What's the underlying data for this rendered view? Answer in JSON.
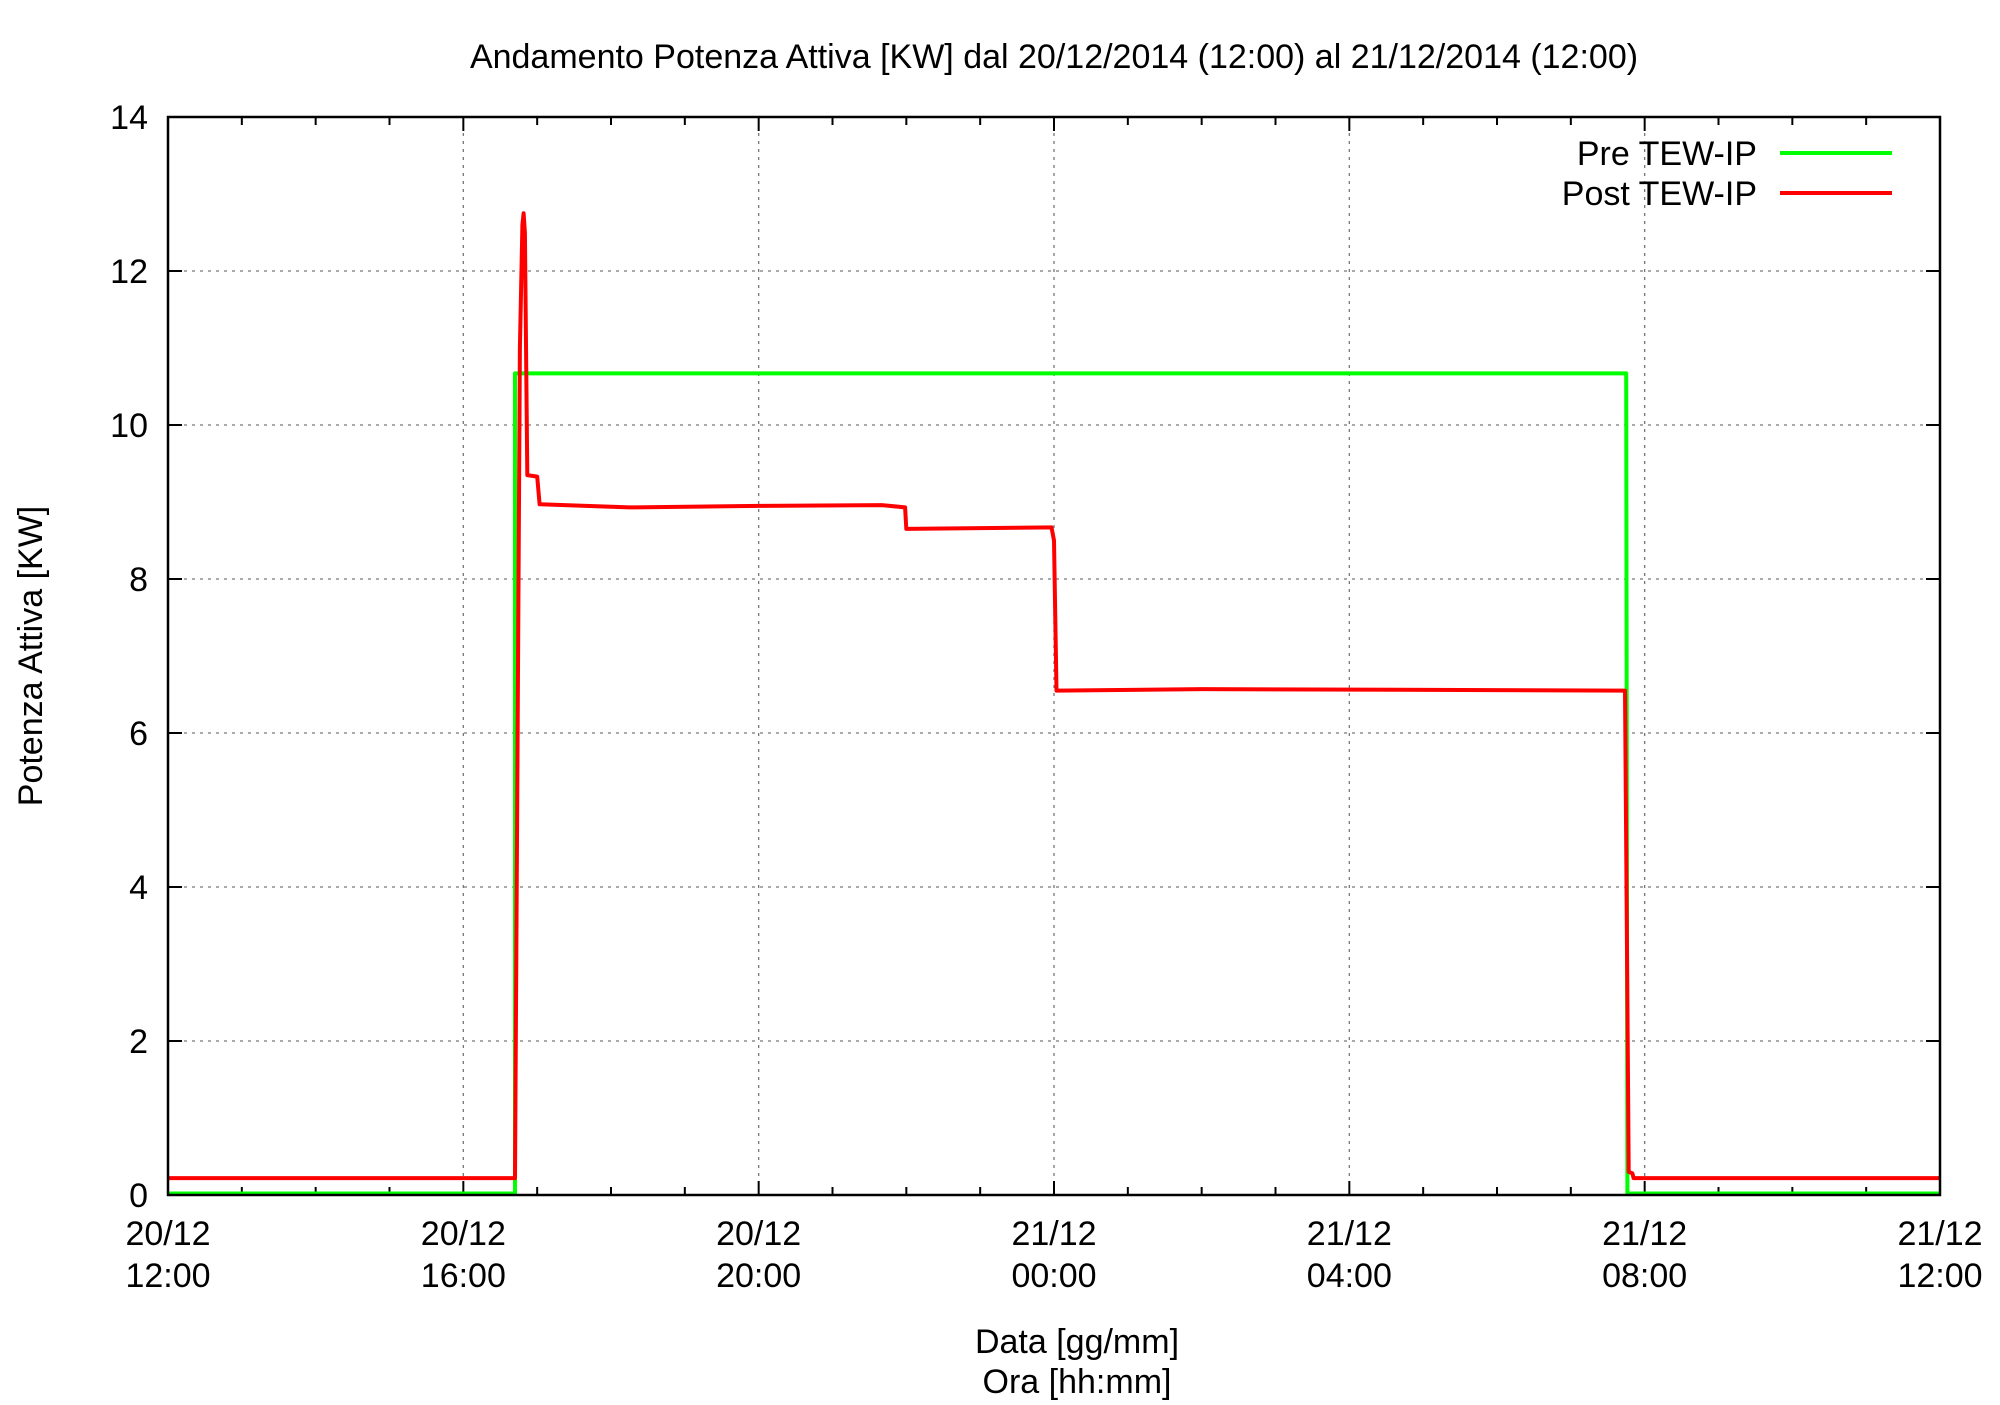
{
  "chart_data": {
    "type": "line",
    "title": "Andamento Potenza Attiva [KW] dal 20/12/2014 (12:00) al 21/12/2014 (12:00)",
    "xlabel": [
      "Data [gg/mm]",
      "Ora [hh:mm]"
    ],
    "ylabel": "Potenza Attiva [KW]",
    "xlim": [
      "2014-12-20 12:00",
      "2014-12-21 12:00"
    ],
    "ylim": [
      0,
      14
    ],
    "yticks": [
      "0",
      "2",
      "4",
      "6",
      "8",
      "10",
      "12",
      "14"
    ],
    "xticks": [
      {
        "t": "2014-12-20 12:00",
        "l1": "20/12",
        "l2": "12:00"
      },
      {
        "t": "2014-12-20 16:00",
        "l1": "20/12",
        "l2": "16:00"
      },
      {
        "t": "2014-12-20 20:00",
        "l1": "20/12",
        "l2": "20:00"
      },
      {
        "t": "2014-12-21 00:00",
        "l1": "21/12",
        "l2": "00:00"
      },
      {
        "t": "2014-12-21 04:00",
        "l1": "21/12",
        "l2": "04:00"
      },
      {
        "t": "2014-12-21 08:00",
        "l1": "21/12",
        "l2": "08:00"
      },
      {
        "t": "2014-12-21 12:00",
        "l1": "21/12",
        "l2": "12:00"
      }
    ],
    "grid": true,
    "legend_position": "top-right",
    "series": [
      {
        "name": "Pre TEW-IP",
        "color": "#00ff00",
        "points": [
          [
            "2014-12-20 12:00",
            0.02
          ],
          [
            "2014-12-20 16:42",
            0.02
          ],
          [
            "2014-12-20 16:42",
            10.67
          ],
          [
            "2014-12-21 07:45",
            10.67
          ],
          [
            "2014-12-21 07:46",
            0.02
          ],
          [
            "2014-12-21 12:00",
            0.02
          ]
        ]
      },
      {
        "name": "Post TEW-IP",
        "color": "#ff0000",
        "points": [
          [
            "2014-12-20 12:00",
            0.22
          ],
          [
            "2014-12-20 16:42",
            0.22
          ],
          [
            "2014-12-20 16:46",
            11.0
          ],
          [
            "2014-12-20 16:48",
            12.6
          ],
          [
            "2014-12-20 16:49",
            12.75
          ],
          [
            "2014-12-20 16:50",
            12.5
          ],
          [
            "2014-12-20 16:52",
            9.35
          ],
          [
            "2014-12-20 17:00",
            9.33
          ],
          [
            "2014-12-20 17:02",
            8.97
          ],
          [
            "2014-12-20 18:15",
            8.93
          ],
          [
            "2014-12-20 20:00",
            8.95
          ],
          [
            "2014-12-20 21:40",
            8.96
          ],
          [
            "2014-12-20 21:59",
            8.93
          ],
          [
            "2014-12-20 22:00",
            8.65
          ],
          [
            "2014-12-20 23:58",
            8.67
          ],
          [
            "2014-12-21 00:00",
            8.5
          ],
          [
            "2014-12-21 00:02",
            6.55
          ],
          [
            "2014-12-21 02:00",
            6.57
          ],
          [
            "2014-12-21 07:44",
            6.55
          ],
          [
            "2014-12-21 07:47",
            0.3
          ],
          [
            "2014-12-21 07:50",
            0.28
          ],
          [
            "2014-12-21 07:51",
            0.22
          ],
          [
            "2014-12-21 12:00",
            0.22
          ]
        ]
      }
    ]
  }
}
